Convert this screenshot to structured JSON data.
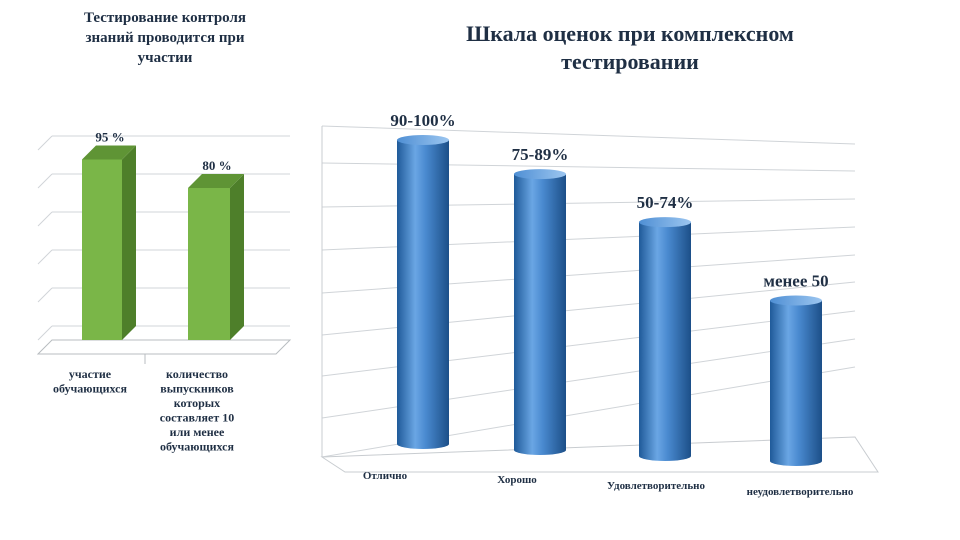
{
  "left_title": [
    "Тестирование контроля",
    "знаний проводится при",
    "участии"
  ],
  "right_title": [
    "Шкала оценок при комплексном",
    "тестировании"
  ],
  "colors": {
    "green": "#7ab648",
    "blue": "#3a7fc4"
  },
  "chart_data": [
    {
      "type": "bar",
      "categories": [
        [
          "участие",
          "обучающихся"
        ],
        [
          "количество",
          "выпускников",
          "которых",
          "составляет 10",
          "или менее",
          "обучающихся"
        ]
      ],
      "values": [
        95,
        80
      ],
      "data_labels": [
        "95 %",
        "80 %"
      ],
      "ylim": [
        0,
        100
      ]
    },
    {
      "type": "bar",
      "categories": [
        "Отлично",
        "Хорошо",
        "Удовлетворительно",
        "неудовлетворительно"
      ],
      "data_labels": [
        "90-100%",
        "75-89%",
        "50-74%",
        "менее 50"
      ],
      "values": [
        100,
        89,
        74,
        50
      ],
      "ylim": [
        0,
        100
      ]
    }
  ]
}
